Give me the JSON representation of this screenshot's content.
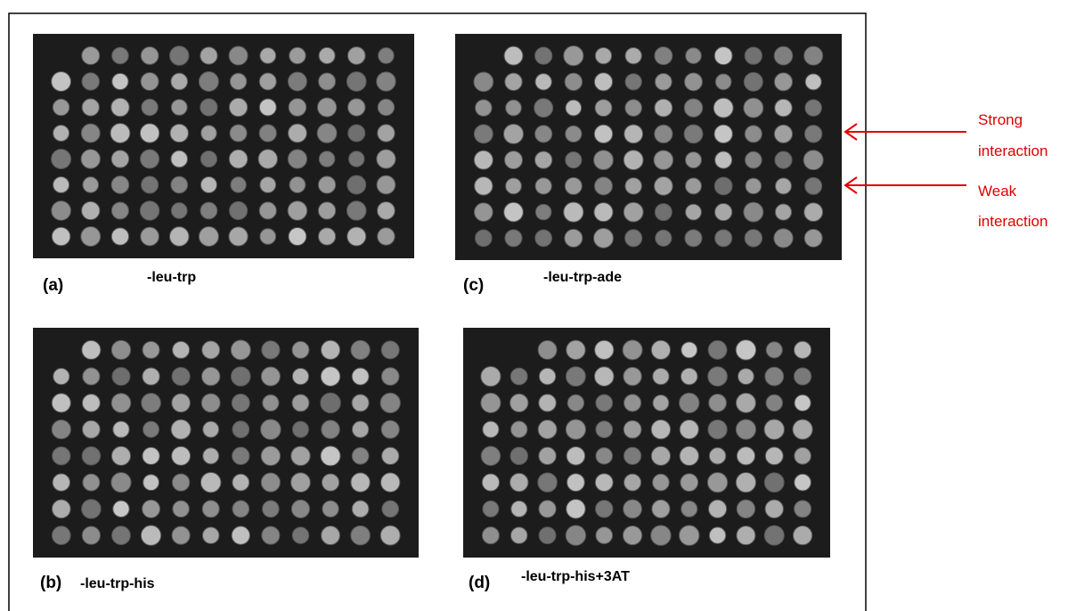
{
  "panels": [
    {
      "label": "(a)",
      "caption": "-leu-trp"
    },
    {
      "label": "(c)",
      "caption": "-leu-trp-ade"
    },
    {
      "label": "(b)",
      "caption": "-leu-trp-his"
    },
    {
      "label": "(d)",
      "caption": "-leu-trp-his+3AT"
    }
  ],
  "annotations": [
    {
      "lines": [
        "Strong",
        "interaction"
      ]
    },
    {
      "lines": [
        "Weak",
        "interaction"
      ]
    }
  ]
}
